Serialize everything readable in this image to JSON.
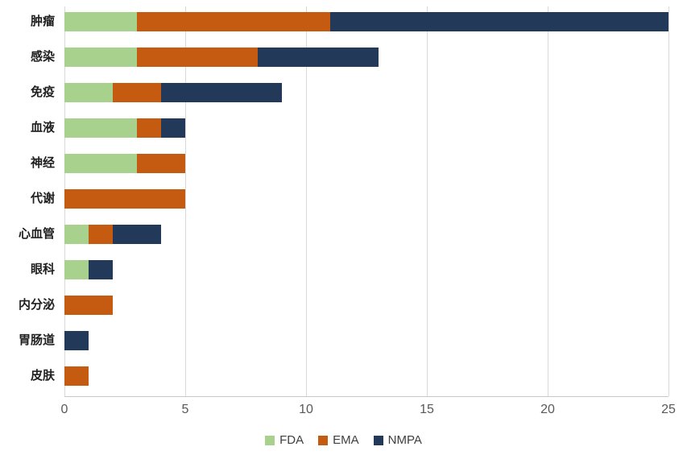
{
  "chart_data": {
    "type": "bar",
    "orientation": "horizontal",
    "stacked": true,
    "title": "",
    "xlabel": "",
    "ylabel": "",
    "categories": [
      "肿瘤",
      "感染",
      "免疫",
      "血液",
      "神经",
      "代谢",
      "心血管",
      "眼科",
      "内分泌",
      "胃肠道",
      "皮肤"
    ],
    "series": [
      {
        "name": "FDA",
        "color": "#a9d18e",
        "values": [
          3,
          3,
          2,
          3,
          3,
          0,
          1,
          1,
          0,
          0,
          0
        ]
      },
      {
        "name": "EMA",
        "color": "#c55a11",
        "values": [
          8,
          5,
          2,
          1,
          2,
          5,
          1,
          0,
          2,
          0,
          1
        ]
      },
      {
        "name": "NMPA",
        "color": "#22395a",
        "values": [
          14,
          5,
          5,
          1,
          0,
          0,
          2,
          1,
          0,
          1,
          0
        ]
      }
    ],
    "xlim": [
      0,
      25
    ],
    "xticks": [
      0,
      5,
      10,
      15,
      20,
      25
    ],
    "grid": true,
    "legend_position": "bottom",
    "colors": {
      "gridline": "#d9d9d9",
      "axis_line": "#c8c8c8",
      "tick_text": "#595959",
      "category_text": "#1f1f1f",
      "legend_text": "#3f3f3f",
      "background": "#ffffff"
    }
  }
}
